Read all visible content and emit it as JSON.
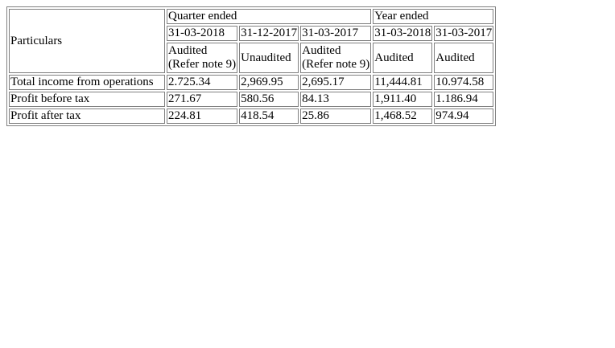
{
  "table": {
    "header": {
      "particulars": "Particulars",
      "quarter_ended": "Quarter ended",
      "year_ended": "Year ended",
      "dates": [
        "31-03-2018",
        "31-12-2017",
        "31-03-2017",
        "31-03-2018",
        "31-03-2017"
      ],
      "status": [
        {
          "line1": "Audited",
          "line2": "(Refer note 9)"
        },
        {
          "line1": "Unaudited",
          "line2": ""
        },
        {
          "line1": "Audited",
          "line2": "(Refer note 9)"
        },
        {
          "line1": "Audited",
          "line2": ""
        },
        {
          "line1": "Audited",
          "line2": ""
        }
      ]
    },
    "rows": [
      {
        "label": "Total income from operations",
        "values": [
          "2.725.34",
          "2,969.95",
          "2,695.17",
          "11,444.81",
          "10.974.58"
        ]
      },
      {
        "label": "Profit before tax",
        "values": [
          "271.67",
          "580.56",
          "84.13",
          "1,911.40",
          "1.186.94"
        ]
      },
      {
        "label": "Profit after tax",
        "values": [
          "224.81",
          "418.54",
          "25.86",
          "1,468.52",
          "974.94"
        ]
      }
    ]
  }
}
